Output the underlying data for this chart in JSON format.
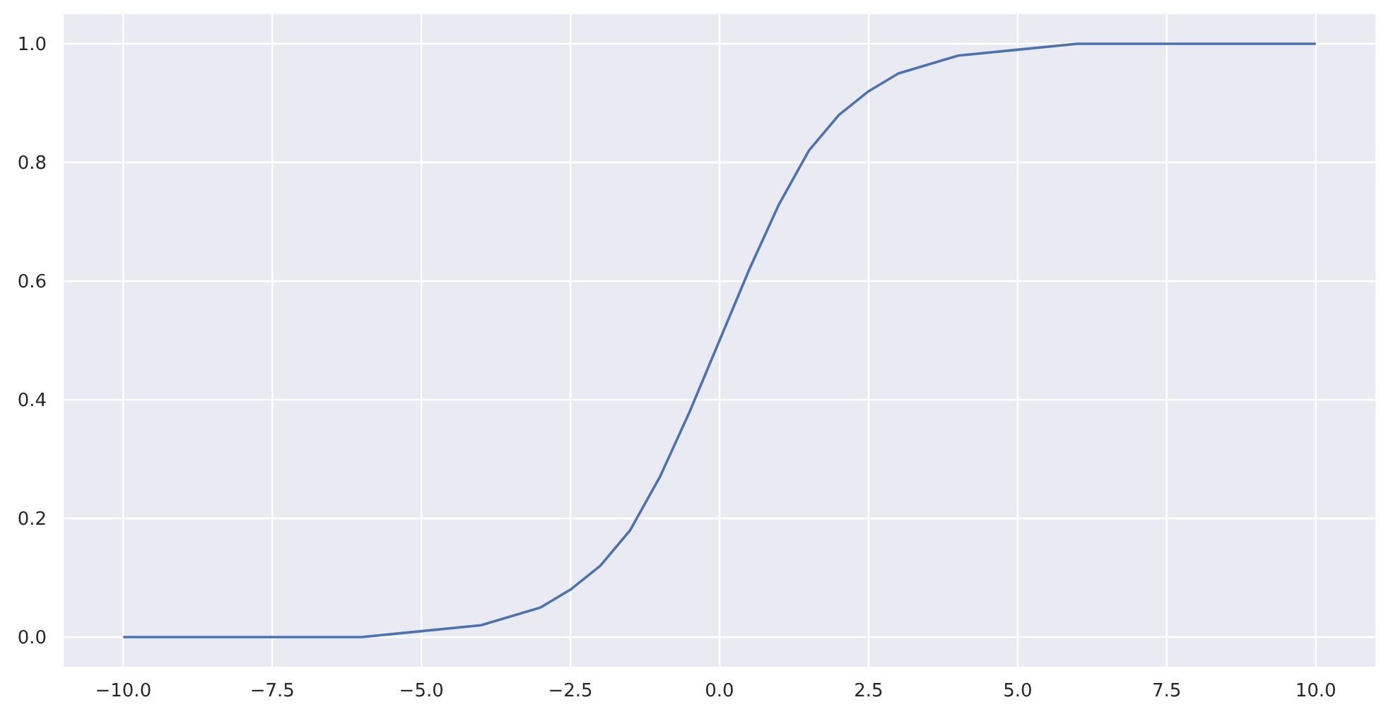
{
  "chart_data": {
    "type": "line",
    "x": [
      -10,
      -8,
      -6,
      -5,
      -4,
      -3,
      -2.5,
      -2,
      -1.5,
      -1,
      -0.5,
      0,
      0.5,
      1,
      1.5,
      2,
      2.5,
      3,
      4,
      5,
      6,
      8,
      10
    ],
    "series": [
      {
        "color": "#4c72b0",
        "values": [
          0.0,
          0.0,
          0.0,
          0.01,
          0.02,
          0.05,
          0.08,
          0.12,
          0.18,
          0.27,
          0.38,
          0.5,
          0.62,
          0.73,
          0.82,
          0.88,
          0.92,
          0.95,
          0.98,
          0.99,
          1.0,
          1.0,
          1.0
        ]
      }
    ],
    "xlim": [
      -11,
      11
    ],
    "xticks": [
      {
        "value": -10,
        "label": "−10.0"
      },
      {
        "value": -7.5,
        "label": "−7.5"
      },
      {
        "value": -5,
        "label": "−5.0"
      },
      {
        "value": -2.5,
        "label": "−2.5"
      },
      {
        "value": 0,
        "label": "0.0"
      },
      {
        "value": 2.5,
        "label": "2.5"
      },
      {
        "value": 5,
        "label": "5.0"
      },
      {
        "value": 7.5,
        "label": "7.5"
      },
      {
        "value": 10,
        "label": "10.0"
      }
    ],
    "ylim": [
      -0.05,
      1.05
    ],
    "yticks": [
      {
        "value": 0,
        "label": "0.0"
      },
      {
        "value": 0.2,
        "label": "0.2"
      },
      {
        "value": 0.4,
        "label": "0.4"
      },
      {
        "value": 0.6,
        "label": "0.6"
      },
      {
        "value": 0.8,
        "label": "0.8"
      },
      {
        "value": 1,
        "label": "1.0"
      }
    ],
    "grid": true,
    "marker": "none",
    "line_style": "solid"
  }
}
